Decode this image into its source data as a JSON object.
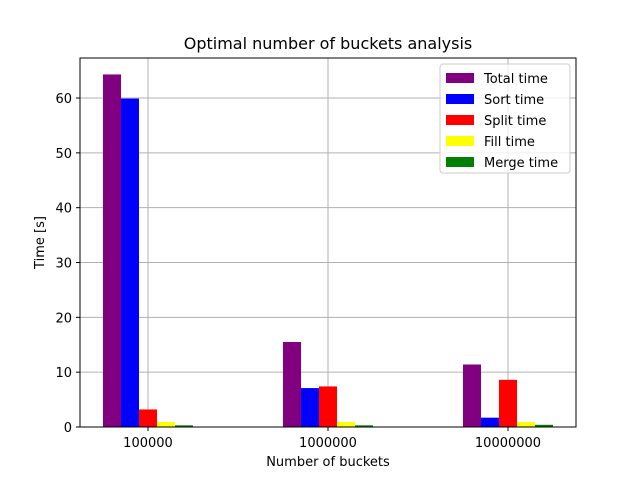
{
  "chart_data": {
    "type": "bar",
    "title": "Optimal number of buckets analysis",
    "xlabel": "Number of buckets",
    "ylabel": "Time [s]",
    "categories": [
      "100000",
      "1000000",
      "10000000"
    ],
    "ylim": [
      0,
      67.3
    ],
    "yticks": [
      0,
      10,
      20,
      30,
      40,
      50,
      60
    ],
    "grid": true,
    "legend_position": "top-right",
    "series": [
      {
        "name": "Total time",
        "color": "#800080",
        "values": [
          64.3,
          15.5,
          11.4
        ]
      },
      {
        "name": "Sort time",
        "color": "#0000ff",
        "values": [
          59.9,
          7.1,
          1.7
        ]
      },
      {
        "name": "Split time",
        "color": "#ff0000",
        "values": [
          3.2,
          7.4,
          8.6
        ]
      },
      {
        "name": "Fill time",
        "color": "#ffff00",
        "values": [
          0.9,
          0.9,
          0.9
        ]
      },
      {
        "name": "Merge time",
        "color": "#008000",
        "values": [
          0.3,
          0.3,
          0.4
        ]
      }
    ]
  }
}
